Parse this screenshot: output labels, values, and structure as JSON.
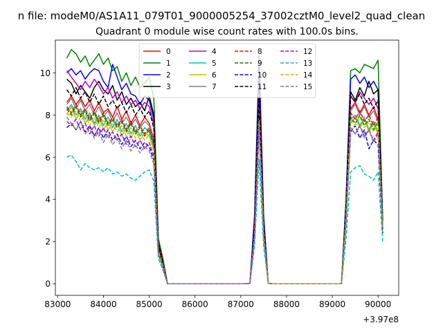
{
  "figure": {
    "suptitle": "n file: modeM0/AS1A11_079T01_9000005254_37002cztM0_level2_quad_clean",
    "offset_label": "+3.97e8"
  },
  "chart_data": {
    "type": "line",
    "title": "Quadrant 0 module wise count rates with 100.0s bins.",
    "xlabel": "",
    "ylabel": "",
    "x_offset": 397000000,
    "x_offset_text": "+3.97e8",
    "xlim": [
      82950,
      90450
    ],
    "ylim": [
      -0.55,
      11.55
    ],
    "xticks": [
      83000,
      84000,
      85000,
      86000,
      87000,
      88000,
      89000,
      90000
    ],
    "yticks": [
      0,
      2,
      4,
      6,
      8,
      10
    ],
    "grid": false,
    "legend": {
      "placement": "upper center",
      "ncol": 4
    },
    "segments": [
      {
        "start": 83200,
        "n": 19
      },
      {
        "start": 85100,
        "n": 6
      },
      {
        "start": 85700,
        "n": 15
      },
      {
        "start": 87200,
        "n": 2
      },
      {
        "start": 87400,
        "n": 1
      },
      {
        "start": 87500,
        "n": 2
      },
      {
        "start": 87700,
        "n": 15
      },
      {
        "start": 89200,
        "n": 2
      },
      {
        "start": 89400,
        "n": 8
      }
    ],
    "series": [
      {
        "name": "0",
        "color": "#ff0000",
        "dash": "solid",
        "first": [
          8.6,
          8.9,
          8.5,
          8.8,
          8.4,
          8.7,
          8.2,
          8.6,
          8.1,
          8.3,
          7.9,
          8.4,
          7.8,
          8.2,
          7.6,
          8.0,
          7.5,
          7.9,
          7.6
        ],
        "peak": 8.3,
        "last": [
          8.3,
          8.6,
          8.1,
          8.5,
          8.0,
          8.4,
          7.8,
          3.0
        ]
      },
      {
        "name": "1",
        "color": "#008000",
        "dash": "solid",
        "first": [
          10.7,
          11.1,
          10.9,
          10.5,
          10.8,
          10.3,
          10.6,
          10.9,
          10.4,
          10.7,
          10.1,
          10.3,
          9.6,
          10.0,
          9.4,
          9.8,
          9.3,
          9.5,
          9.8
        ],
        "peak": 9.6,
        "last": [
          10.1,
          10.2,
          10.0,
          10.4,
          10.3,
          10.2,
          10.6,
          3.0
        ]
      },
      {
        "name": "2",
        "color": "#0000ff",
        "dash": "solid",
        "first": [
          10.0,
          10.2,
          9.9,
          10.1,
          9.7,
          10.0,
          10.2,
          10.1,
          9.6,
          9.3,
          10.4,
          9.8,
          9.2,
          9.5,
          9.0,
          8.9,
          8.5,
          8.9,
          8.7
        ],
        "peak": 10.8,
        "last": [
          9.7,
          9.9,
          9.5,
          9.8,
          9.3,
          9.6,
          9.2,
          3.0
        ]
      },
      {
        "name": "3",
        "color": "#000000",
        "dash": "solid",
        "first": [
          9.7,
          9.5,
          9.0,
          9.4,
          9.1,
          8.8,
          9.3,
          9.6,
          9.2,
          9.0,
          9.4,
          8.7,
          9.1,
          8.5,
          8.8,
          8.4,
          8.6,
          8.2,
          8.9
        ],
        "peak": 9.7,
        "last": [
          9.1,
          8.7,
          9.3,
          8.9,
          9.6,
          9.0,
          9.2,
          3.0
        ]
      },
      {
        "name": "4",
        "color": "#bf00bf",
        "dash": "solid",
        "first": [
          10.1,
          9.8,
          9.5,
          9.2,
          9.6,
          9.3,
          9.7,
          9.4,
          9.0,
          9.3,
          8.8,
          9.1,
          8.6,
          8.9,
          8.5,
          8.7,
          8.3,
          8.6,
          8.4
        ],
        "peak": 9.0,
        "last": [
          8.9,
          8.6,
          9.1,
          8.8,
          8.5,
          8.8,
          8.3,
          3.0
        ]
      },
      {
        "name": "5",
        "color": "#00bfbf",
        "dash": "solid",
        "first": [
          8.2,
          8.5,
          8.0,
          8.3,
          7.8,
          8.1,
          7.6,
          8.0,
          7.5,
          7.9,
          7.4,
          7.8,
          7.2,
          7.6,
          7.1,
          7.5,
          7.0,
          7.4,
          7.2
        ],
        "peak": 7.9,
        "last": [
          7.8,
          8.0,
          7.5,
          7.9,
          7.3,
          7.7,
          7.2,
          2.6
        ]
      },
      {
        "name": "6",
        "color": "#bfbf00",
        "dash": "solid",
        "first": [
          8.0,
          8.4,
          7.8,
          8.2,
          7.6,
          8.0,
          7.5,
          7.9,
          7.3,
          7.7,
          7.2,
          7.6,
          7.0,
          7.4,
          6.9,
          7.3,
          6.8,
          7.2,
          7.0
        ],
        "peak": 7.7,
        "last": [
          7.6,
          7.9,
          7.4,
          7.8,
          7.2,
          7.6,
          7.1,
          2.5
        ]
      },
      {
        "name": "7",
        "color": "#808080",
        "dash": "solid",
        "first": [
          8.5,
          8.8,
          8.3,
          8.7,
          8.2,
          8.5,
          8.0,
          8.4,
          7.9,
          8.2,
          7.7,
          8.1,
          7.6,
          7.9,
          7.5,
          7.8,
          7.4,
          7.7,
          7.5
        ],
        "peak": 8.4,
        "last": [
          8.2,
          8.5,
          8.0,
          8.4,
          7.9,
          8.2,
          7.7,
          2.8
        ]
      },
      {
        "name": "8",
        "color": "#ff0000",
        "dash": "dashed",
        "first": [
          8.4,
          8.1,
          8.5,
          8.0,
          8.3,
          7.8,
          8.2,
          7.7,
          8.1,
          7.6,
          7.9,
          7.5,
          7.8,
          7.3,
          7.7,
          7.2,
          7.5,
          7.1,
          7.4
        ],
        "peak": 8.0,
        "last": [
          8.1,
          7.8,
          8.2,
          7.7,
          8.0,
          7.5,
          7.9,
          2.9
        ]
      },
      {
        "name": "9",
        "color": "#008000",
        "dash": "dashed",
        "first": [
          8.3,
          8.0,
          8.4,
          7.9,
          8.2,
          7.7,
          8.1,
          7.6,
          8.0,
          7.5,
          7.8,
          7.4,
          7.7,
          7.2,
          7.6,
          7.1,
          7.4,
          7.0,
          7.3
        ],
        "peak": 7.8,
        "last": [
          7.9,
          7.6,
          8.0,
          7.5,
          7.8,
          7.3,
          7.7,
          2.8
        ]
      },
      {
        "name": "10",
        "color": "#0000ff",
        "dash": "dashed",
        "first": [
          7.4,
          7.6,
          7.3,
          7.7,
          7.2,
          7.5,
          7.0,
          7.4,
          6.9,
          7.3,
          6.8,
          7.1,
          6.6,
          7.0,
          6.5,
          6.8,
          6.4,
          6.7,
          6.5
        ],
        "peak": 7.3,
        "last": [
          7.2,
          7.5,
          6.9,
          7.3,
          6.4,
          6.8,
          6.6,
          2.4
        ]
      },
      {
        "name": "11",
        "color": "#000000",
        "dash": "dashed",
        "first": [
          9.2,
          8.9,
          9.3,
          8.8,
          9.1,
          8.6,
          9.0,
          8.5,
          8.9,
          8.4,
          8.7,
          8.3,
          8.6,
          8.1,
          8.5,
          8.0,
          8.3,
          7.9,
          8.2
        ],
        "peak": 8.8,
        "last": [
          8.9,
          8.6,
          9.0,
          8.5,
          8.8,
          8.3,
          8.7,
          2.9
        ]
      },
      {
        "name": "12",
        "color": "#bf00bf",
        "dash": "dashed",
        "first": [
          7.7,
          7.5,
          7.8,
          7.3,
          7.6,
          7.1,
          7.5,
          7.0,
          7.4,
          6.9,
          7.2,
          6.8,
          7.1,
          6.6,
          7.0,
          6.5,
          6.8,
          6.4,
          6.7
        ],
        "peak": 7.5,
        "last": [
          7.4,
          7.1,
          7.5,
          7.0,
          7.3,
          6.8,
          7.2,
          2.6
        ]
      },
      {
        "name": "13",
        "color": "#00bfbf",
        "dash": "dashed",
        "first": [
          6.0,
          6.1,
          5.8,
          5.4,
          5.7,
          5.5,
          5.4,
          5.5,
          5.3,
          5.5,
          5.2,
          5.3,
          5.1,
          5.2,
          5.0,
          4.9,
          5.1,
          5.3,
          5.4
        ],
        "peak": 5.9,
        "last": [
          5.3,
          5.5,
          5.6,
          5.2,
          5.1,
          4.9,
          5.3,
          2.0
        ]
      },
      {
        "name": "14",
        "color": "#bfbf00",
        "dash": "dashed",
        "first": [
          8.1,
          7.9,
          8.2,
          7.7,
          8.0,
          7.5,
          7.9,
          7.4,
          7.8,
          7.3,
          7.6,
          7.2,
          7.5,
          7.0,
          7.4,
          6.9,
          7.2,
          6.8,
          7.1
        ],
        "peak": 7.7,
        "last": [
          7.8,
          7.5,
          7.9,
          7.4,
          7.7,
          7.2,
          7.6,
          2.7
        ]
      },
      {
        "name": "15",
        "color": "#808080",
        "dash": "dashed",
        "first": [
          7.9,
          7.6,
          7.3,
          7.7,
          7.1,
          7.4,
          6.9,
          7.2,
          6.7,
          7.1,
          6.6,
          6.9,
          6.4,
          6.8,
          6.3,
          6.6,
          6.2,
          6.5,
          6.3
        ],
        "peak": 7.4,
        "last": [
          7.4,
          7.1,
          7.5,
          6.9,
          7.3,
          6.7,
          7.1,
          2.6
        ]
      }
    ]
  }
}
